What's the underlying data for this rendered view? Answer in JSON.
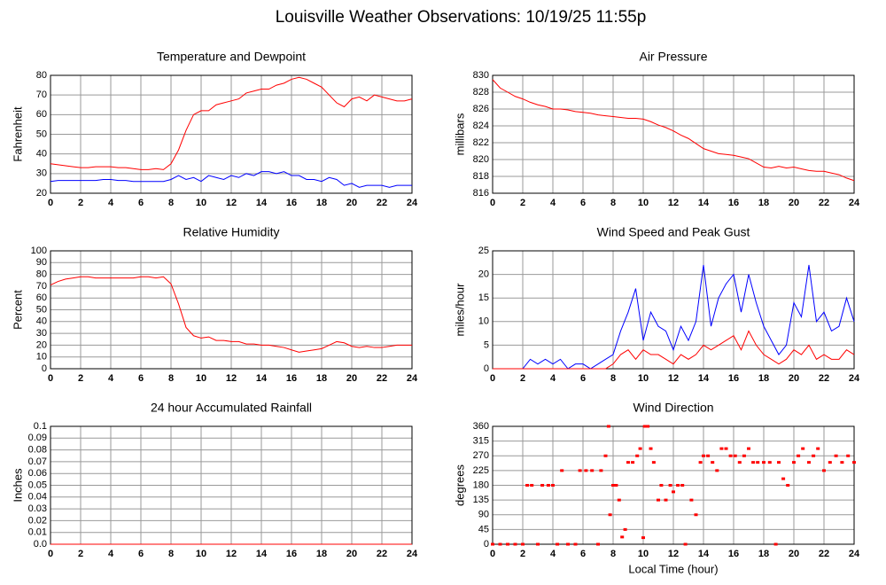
{
  "title": "Louisville Weather Observations: 10/19/25 11:55p",
  "chart_data": [
    {
      "type": "line",
      "title": "Temperature and Dewpoint",
      "ylabel": "Fahrenheit",
      "x": [
        0,
        0.5,
        1,
        1.5,
        2,
        2.5,
        3,
        3.5,
        4,
        4.5,
        5,
        5.5,
        6,
        6.5,
        7,
        7.5,
        8,
        8.5,
        9,
        9.5,
        10,
        10.5,
        11,
        11.5,
        12,
        12.5,
        13,
        13.5,
        14,
        14.5,
        15,
        15.5,
        16,
        16.5,
        17,
        17.5,
        18,
        18.5,
        19,
        19.5,
        20,
        20.5,
        21,
        21.5,
        22,
        22.5,
        23,
        23.5,
        24
      ],
      "series": [
        {
          "color": "#ff0000",
          "values": [
            35,
            34.5,
            34,
            33.5,
            33,
            33,
            33.5,
            33.5,
            33.5,
            33,
            33,
            32.5,
            32,
            32,
            32.5,
            32,
            35,
            42,
            52,
            60,
            62,
            62,
            65,
            66,
            67,
            68,
            71,
            72,
            73,
            73,
            75,
            76,
            78,
            79,
            78,
            76,
            74,
            70,
            66,
            64,
            68,
            69,
            67,
            70,
            69,
            68,
            67,
            67,
            68
          ]
        },
        {
          "color": "#0000ff",
          "values": [
            26,
            26.5,
            26.5,
            26.5,
            26.5,
            26.5,
            26.5,
            27,
            27,
            26.5,
            26.5,
            26,
            26,
            26,
            26,
            26,
            27,
            29,
            27,
            28,
            26,
            29,
            28,
            27,
            29,
            28,
            30,
            29,
            31,
            31,
            30,
            31,
            29,
            29,
            27,
            27,
            26,
            28,
            27,
            24,
            25,
            23,
            24,
            24,
            24,
            23,
            24,
            24,
            24
          ]
        }
      ],
      "xlim": [
        0,
        24
      ],
      "ylim": [
        20,
        80
      ],
      "xticks": [
        0,
        2,
        4,
        6,
        8,
        10,
        12,
        14,
        16,
        18,
        20,
        22,
        24
      ],
      "yticks": [
        20,
        30,
        40,
        50,
        60,
        70,
        80
      ],
      "grid": true
    },
    {
      "type": "line",
      "title": "Air Pressure",
      "ylabel": "millibars",
      "x": [
        0,
        0.5,
        1,
        1.5,
        2,
        2.5,
        3,
        3.5,
        4,
        4.5,
        5,
        5.5,
        6,
        6.5,
        7,
        7.5,
        8,
        8.5,
        9,
        9.5,
        10,
        10.5,
        11,
        11.5,
        12,
        12.5,
        13,
        13.5,
        14,
        14.5,
        15,
        15.5,
        16,
        16.5,
        17,
        17.5,
        18,
        18.5,
        19,
        19.5,
        20,
        20.5,
        21,
        21.5,
        22,
        22.5,
        23,
        23.5,
        24
      ],
      "series": [
        {
          "color": "#ff0000",
          "values": [
            829.5,
            828.5,
            828,
            827.5,
            827.2,
            826.8,
            826.5,
            826.3,
            826,
            826,
            825.9,
            825.7,
            825.6,
            825.5,
            825.3,
            825.2,
            825.1,
            825,
            824.9,
            824.9,
            824.8,
            824.5,
            824.1,
            823.8,
            823.4,
            822.9,
            822.5,
            821.9,
            821.3,
            821,
            820.7,
            820.6,
            820.5,
            820.3,
            820.1,
            819.6,
            819.1,
            819,
            819.2,
            819,
            819.1,
            818.9,
            818.7,
            818.6,
            818.6,
            818.4,
            818.2,
            817.8,
            817.5
          ]
        }
      ],
      "xlim": [
        0,
        24
      ],
      "ylim": [
        816,
        830
      ],
      "xticks": [
        0,
        2,
        4,
        6,
        8,
        10,
        12,
        14,
        16,
        18,
        20,
        22,
        24
      ],
      "yticks": [
        816,
        818,
        820,
        822,
        824,
        826,
        828,
        830
      ],
      "grid": true
    },
    {
      "type": "line",
      "title": "Relative Humidity",
      "ylabel": "Percent",
      "x": [
        0,
        0.5,
        1,
        1.5,
        2,
        2.5,
        3,
        3.5,
        4,
        4.5,
        5,
        5.5,
        6,
        6.5,
        7,
        7.5,
        8,
        8.5,
        9,
        9.5,
        10,
        10.5,
        11,
        11.5,
        12,
        12.5,
        13,
        13.5,
        14,
        14.5,
        15,
        15.5,
        16,
        16.5,
        17,
        17.5,
        18,
        18.5,
        19,
        19.5,
        20,
        20.5,
        21,
        21.5,
        22,
        22.5,
        23,
        23.5,
        24
      ],
      "series": [
        {
          "color": "#ff0000",
          "values": [
            71,
            74,
            76,
            77,
            78,
            78,
            77,
            77,
            77,
            77,
            77,
            77,
            78,
            78,
            77,
            78,
            72,
            55,
            35,
            28,
            26,
            27,
            24,
            24,
            23,
            23,
            21,
            21,
            20,
            20,
            19,
            18,
            16,
            14,
            15,
            16,
            17,
            20,
            23,
            22,
            19,
            18,
            19,
            18,
            18,
            19,
            20,
            20,
            20
          ]
        }
      ],
      "xlim": [
        0,
        24
      ],
      "ylim": [
        0,
        100
      ],
      "xticks": [
        0,
        2,
        4,
        6,
        8,
        10,
        12,
        14,
        16,
        18,
        20,
        22,
        24
      ],
      "yticks": [
        0,
        10,
        20,
        30,
        40,
        50,
        60,
        70,
        80,
        90,
        100
      ],
      "grid": true
    },
    {
      "type": "line",
      "title": "Wind Speed and Peak Gust",
      "ylabel": "miles/hour",
      "x": [
        0,
        0.5,
        1,
        1.5,
        2,
        2.5,
        3,
        3.5,
        4,
        4.5,
        5,
        5.5,
        6,
        6.5,
        7,
        7.5,
        8,
        8.5,
        9,
        9.5,
        10,
        10.5,
        11,
        11.5,
        12,
        12.5,
        13,
        13.5,
        14,
        14.5,
        15,
        15.5,
        16,
        16.5,
        17,
        17.5,
        18,
        18.5,
        19,
        19.5,
        20,
        20.5,
        21,
        21.5,
        22,
        22.5,
        23,
        23.5,
        24
      ],
      "series": [
        {
          "color": "#0000ff",
          "values": [
            0,
            0,
            0,
            0,
            0,
            2,
            1,
            2,
            1,
            2,
            0,
            1,
            1,
            0,
            1,
            2,
            3,
            8,
            12,
            17,
            6,
            12,
            9,
            8,
            4,
            9,
            6,
            10,
            22,
            9,
            15,
            18,
            20,
            12,
            20,
            14,
            9,
            6,
            3,
            5,
            14,
            11,
            22,
            10,
            12,
            8,
            9,
            15,
            10
          ]
        },
        {
          "color": "#ff0000",
          "values": [
            0,
            0,
            0,
            0,
            0,
            0,
            0,
            0,
            0,
            0,
            0,
            0,
            0,
            0,
            0,
            0,
            1,
            3,
            4,
            2,
            4,
            3,
            3,
            2,
            1,
            3,
            2,
            3,
            5,
            4,
            5,
            6,
            7,
            4,
            8,
            5,
            3,
            2,
            1,
            2,
            4,
            3,
            5,
            2,
            3,
            2,
            2,
            4,
            3
          ]
        }
      ],
      "xlim": [
        0,
        24
      ],
      "ylim": [
        0,
        25
      ],
      "xticks": [
        0,
        2,
        4,
        6,
        8,
        10,
        12,
        14,
        16,
        18,
        20,
        22,
        24
      ],
      "yticks": [
        0,
        5,
        10,
        15,
        20,
        25
      ],
      "grid": true
    },
    {
      "type": "line",
      "title": "24 hour Accumulated Rainfall",
      "ylabel": "Inches",
      "x": [
        0,
        24
      ],
      "series": [
        {
          "color": "#ff0000",
          "values": [
            0,
            0
          ]
        }
      ],
      "xlim": [
        0,
        24
      ],
      "ylim": [
        0,
        0.1
      ],
      "xticks": [
        0,
        2,
        4,
        6,
        8,
        10,
        12,
        14,
        16,
        18,
        20,
        22,
        24
      ],
      "yticks": [
        {
          "value": 0,
          "label": "0.0"
        },
        0.01,
        0.02,
        0.03,
        0.04,
        0.05,
        0.06,
        0.07,
        0.08,
        0.09,
        0.1
      ],
      "grid": true
    },
    {
      "type": "scatter",
      "title": "Wind Direction",
      "ylabel": "degrees",
      "xlabel": "Local Time (hour)",
      "x": [
        0,
        0.5,
        1,
        1.5,
        2,
        2.3,
        2.6,
        3,
        3.3,
        3.7,
        4,
        4.3,
        4.6,
        5,
        5.5,
        5.8,
        6.2,
        6.6,
        7,
        7.2,
        7.5,
        7.7,
        7.8,
        8,
        8.2,
        8.4,
        8.6,
        8.8,
        9,
        9.3,
        9.6,
        9.8,
        10,
        10.1,
        10.3,
        10.5,
        10.7,
        11,
        11.2,
        11.5,
        11.8,
        12,
        12.3,
        12.6,
        12.8,
        13.2,
        13.5,
        13.8,
        14,
        14.3,
        14.6,
        14.9,
        15.2,
        15.5,
        15.8,
        16.1,
        16.4,
        16.7,
        17,
        17.3,
        17.6,
        18,
        18.4,
        18.8,
        19,
        19.3,
        19.6,
        20,
        20.3,
        20.6,
        21,
        21.3,
        21.6,
        22,
        22.4,
        22.8,
        23.2,
        23.6,
        24
      ],
      "series": [
        {
          "color": "#ff0000",
          "values": [
            0,
            0,
            0,
            0,
            0,
            180,
            180,
            0,
            180,
            180,
            180,
            0,
            225,
            0,
            0,
            225,
            225,
            225,
            0,
            225,
            270,
            360,
            90,
            180,
            180,
            135,
            22,
            45,
            250,
            250,
            270,
            292,
            20,
            360,
            360,
            292,
            250,
            135,
            180,
            135,
            180,
            160,
            180,
            180,
            0,
            135,
            90,
            250,
            270,
            270,
            250,
            225,
            292,
            292,
            270,
            270,
            250,
            270,
            292,
            250,
            250,
            250,
            250,
            0,
            250,
            200,
            180,
            250,
            270,
            292,
            250,
            270,
            292,
            225,
            250,
            270,
            250,
            270,
            250
          ]
        }
      ],
      "xlim": [
        0,
        24
      ],
      "ylim": [
        0,
        360
      ],
      "xticks": [
        0,
        2,
        4,
        6,
        8,
        10,
        12,
        14,
        16,
        18,
        20,
        22,
        24
      ],
      "yticks": [
        0,
        45,
        90,
        135,
        180,
        225,
        270,
        315,
        360
      ],
      "grid": true
    }
  ]
}
